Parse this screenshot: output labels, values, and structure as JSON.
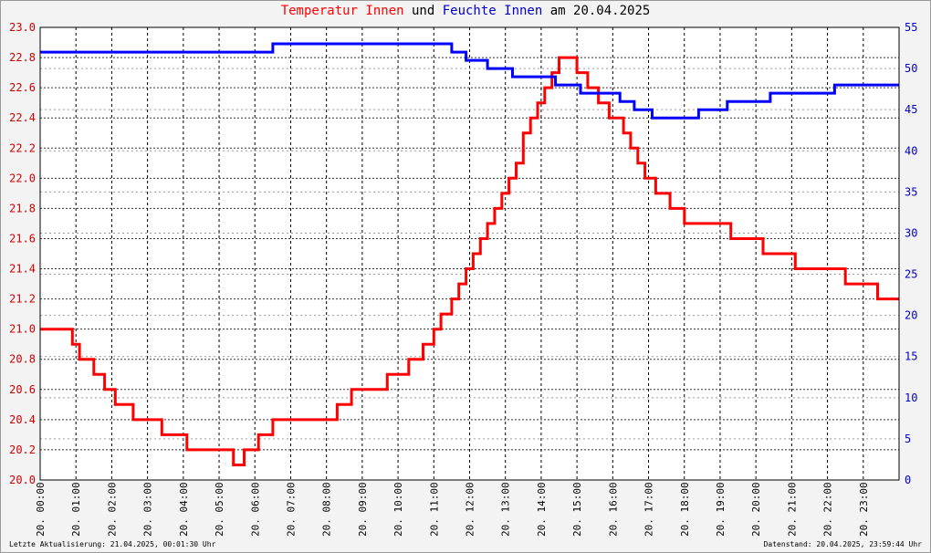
{
  "title": {
    "part1": "Temperatur Innen",
    "part2": "und",
    "part3": "Feuchte Innen",
    "part4": "am 20.04.2025"
  },
  "footer": {
    "left": "Letzte Aktualisierung: 21.04.2025, 00:01:30 Uhr",
    "right": "Datenstand: 20.04.2025, 23:59:44 Uhr"
  },
  "colors": {
    "temperature": "#ff0000",
    "humidity": "#0000ff",
    "grid": "#000000",
    "background": "#ffffff"
  },
  "chart_data": {
    "type": "line",
    "title": "Temperatur Innen und Feuchte Innen am 20.04.2025",
    "x_range_hours": [
      0,
      24
    ],
    "x_tick_labels": [
      "20. 00:00",
      "20. 01:00",
      "20. 02:00",
      "20. 03:00",
      "20. 04:00",
      "20. 05:00",
      "20. 06:00",
      "20. 07:00",
      "20. 08:00",
      "20. 09:00",
      "20. 10:00",
      "20. 11:00",
      "20. 12:00",
      "20. 13:00",
      "20. 14:00",
      "20. 15:00",
      "20. 16:00",
      "20. 17:00",
      "20. 18:00",
      "20. 19:00",
      "20. 20:00",
      "20. 21:00",
      "20. 22:00",
      "20. 23:00"
    ],
    "y_left": {
      "ylim": [
        20.0,
        23.0
      ],
      "tick_labels": [
        "20.0",
        "20.2",
        "20.4",
        "20.6",
        "20.8",
        "21.0",
        "21.2",
        "21.4",
        "21.6",
        "21.8",
        "22.0",
        "22.2",
        "22.4",
        "22.6",
        "22.8",
        "23.0"
      ]
    },
    "y_right": {
      "ylim": [
        0,
        55
      ],
      "tick_labels": [
        "0",
        "5",
        "10",
        "15",
        "20",
        "25",
        "30",
        "35",
        "40",
        "45",
        "50",
        "55"
      ]
    },
    "grid": true,
    "series": [
      {
        "name": "Temperatur Innen",
        "axis": "left",
        "color": "#ff0000",
        "x": [
          0,
          0.9,
          1.1,
          1.5,
          1.8,
          2.1,
          2.6,
          3.4,
          4.1,
          4.5,
          5.0,
          5.4,
          5.7,
          6.1,
          6.5,
          7.3,
          8.3,
          8.7,
          9.2,
          9.7,
          10.3,
          10.7,
          11.0,
          11.2,
          11.5,
          11.7,
          11.9,
          12.1,
          12.3,
          12.5,
          12.7,
          12.9,
          13.1,
          13.3,
          13.5,
          13.7,
          13.9,
          14.1,
          14.3,
          14.5,
          14.7,
          15.0,
          15.3,
          15.6,
          15.9,
          16.1,
          16.3,
          16.5,
          16.7,
          16.9,
          17.2,
          17.6,
          18.0,
          19.0,
          19.3,
          20.2,
          21.1,
          22.2,
          22.5,
          23.4,
          24.0
        ],
        "y": [
          21.0,
          20.9,
          20.8,
          20.7,
          20.6,
          20.5,
          20.4,
          20.3,
          20.2,
          20.2,
          20.2,
          20.1,
          20.2,
          20.3,
          20.4,
          20.4,
          20.5,
          20.6,
          20.6,
          20.7,
          20.8,
          20.9,
          21.0,
          21.1,
          21.2,
          21.3,
          21.4,
          21.5,
          21.6,
          21.7,
          21.8,
          21.9,
          22.0,
          22.1,
          22.3,
          22.4,
          22.5,
          22.6,
          22.7,
          22.8,
          22.8,
          22.7,
          22.6,
          22.5,
          22.4,
          22.4,
          22.3,
          22.2,
          22.1,
          22.0,
          21.9,
          21.8,
          21.7,
          21.7,
          21.6,
          21.5,
          21.4,
          21.4,
          21.3,
          21.2,
          21.2
        ]
      },
      {
        "name": "Feuchte Innen",
        "axis": "right",
        "color": "#0000ff",
        "x": [
          0,
          4.5,
          6.5,
          11.5,
          11.9,
          12.5,
          13.2,
          14.4,
          15.1,
          15.7,
          16.2,
          16.6,
          17.1,
          17.9,
          18.4,
          19.2,
          20.4,
          22.2,
          24.0
        ],
        "y": [
          52,
          52,
          53,
          52,
          51,
          50,
          49,
          48,
          47,
          47,
          46,
          45,
          44,
          44,
          45,
          46,
          47,
          48,
          48
        ]
      }
    ]
  }
}
